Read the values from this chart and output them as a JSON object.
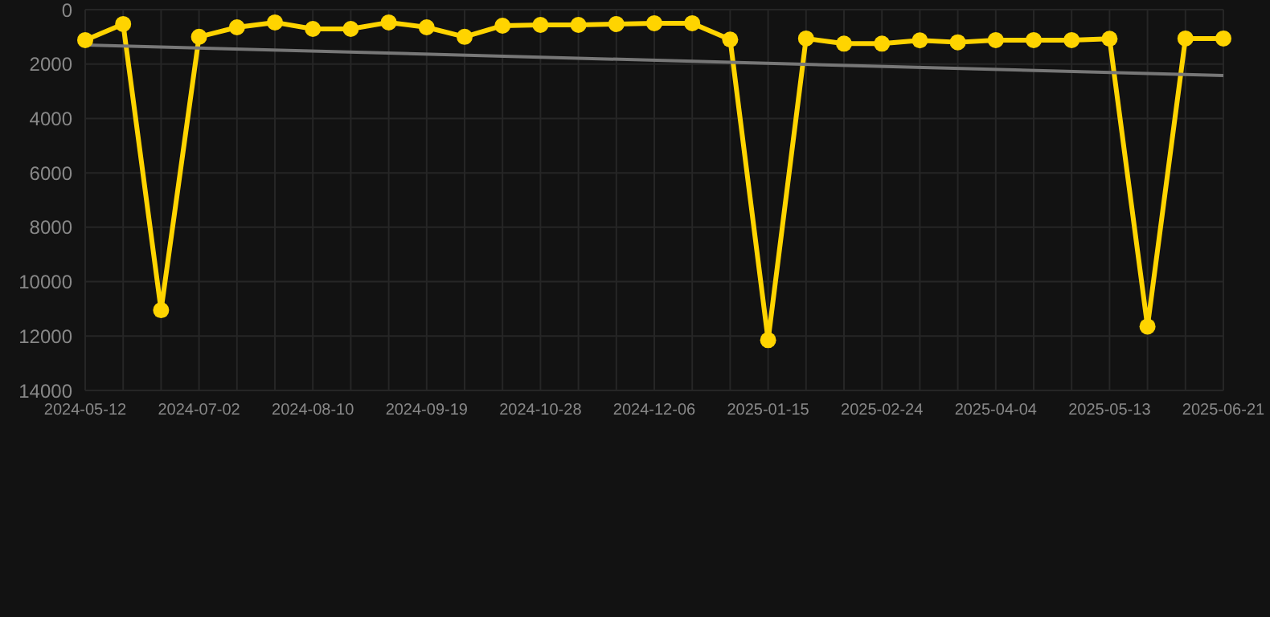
{
  "chart_data": {
    "type": "line",
    "categories": [
      "2024-05-12",
      null,
      null,
      "2024-07-02",
      null,
      null,
      "2024-08-10",
      null,
      null,
      "2024-09-19",
      null,
      null,
      "2024-10-28",
      null,
      null,
      "2024-12-06",
      null,
      null,
      "2025-01-15",
      null,
      null,
      "2025-02-24",
      null,
      null,
      "2025-04-04",
      null,
      null,
      "2025-05-13",
      null,
      null,
      "2025-06-21"
    ],
    "series": [
      {
        "color": "#ffd400",
        "values": [
          1120,
          530,
          11050,
          1000,
          650,
          470,
          710,
          710,
          470,
          650,
          1000,
          590,
          560,
          560,
          530,
          500,
          500,
          1100,
          12150,
          1060,
          1250,
          1250,
          1130,
          1200,
          1120,
          1120,
          1120,
          1070,
          11650,
          1060,
          1060
        ]
      },
      {
        "color": "#777777",
        "marker": "none",
        "values": [
          1300,
          null,
          null,
          null,
          null,
          null,
          null,
          null,
          null,
          null,
          null,
          null,
          null,
          null,
          null,
          null,
          null,
          null,
          null,
          null,
          null,
          null,
          null,
          null,
          null,
          null,
          null,
          null,
          null,
          null,
          2420
        ]
      }
    ],
    "ylim": [
      14000,
      0
    ],
    "yticks": [
      0,
      2000,
      4000,
      6000,
      8000,
      10000,
      12000,
      14000
    ],
    "grid": true,
    "marker": "circle",
    "line_style": "solid"
  }
}
